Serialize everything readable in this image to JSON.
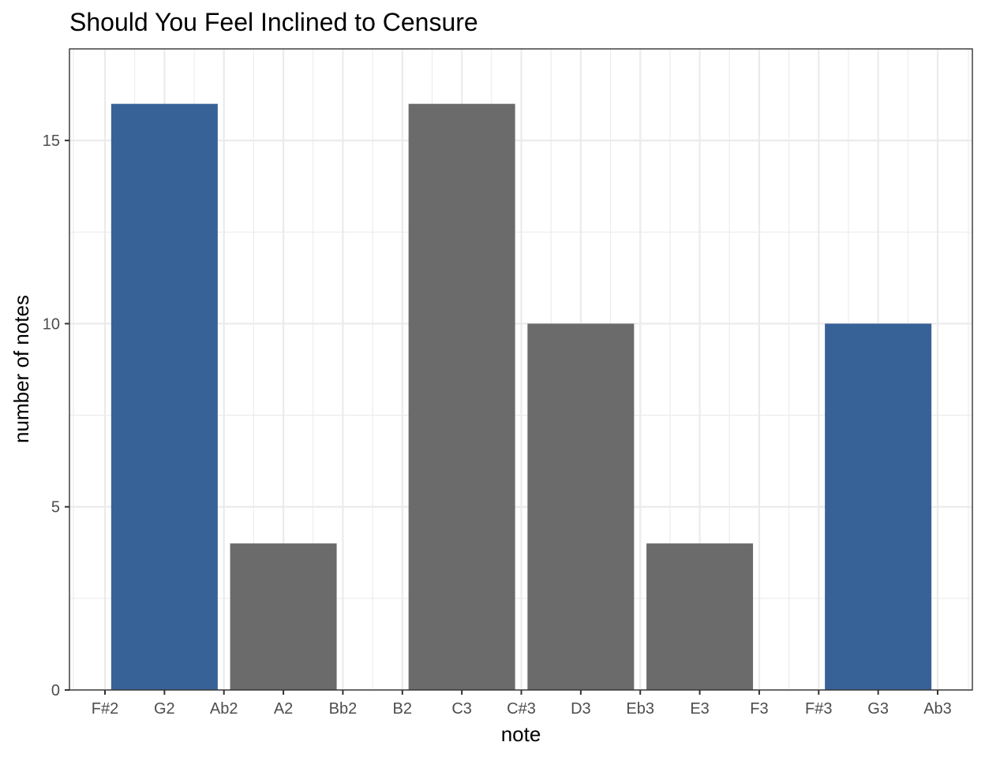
{
  "chart_data": {
    "type": "bar",
    "title": "Should You Feel Inclined to Censure",
    "xlabel": "note",
    "ylabel": "number of notes",
    "categories": [
      "F#2",
      "G2",
      "Ab2",
      "A2",
      "Bb2",
      "B2",
      "C3",
      "C#3",
      "D3",
      "Eb3",
      "E3",
      "F3",
      "F#3",
      "G3",
      "Ab3"
    ],
    "values": [
      0,
      16,
      0,
      4,
      0,
      0,
      16,
      0,
      10,
      0,
      4,
      0,
      0,
      10,
      0
    ],
    "highlighted": [
      "G2",
      "G3"
    ],
    "ylim": [
      0,
      17.5
    ],
    "yticks": [
      0,
      5,
      10,
      15
    ],
    "ytick_labels": [
      "0",
      "5",
      "10",
      "15"
    ],
    "grid": true,
    "colors": {
      "highlight": "#376297",
      "default": "#6b6b6b"
    }
  }
}
